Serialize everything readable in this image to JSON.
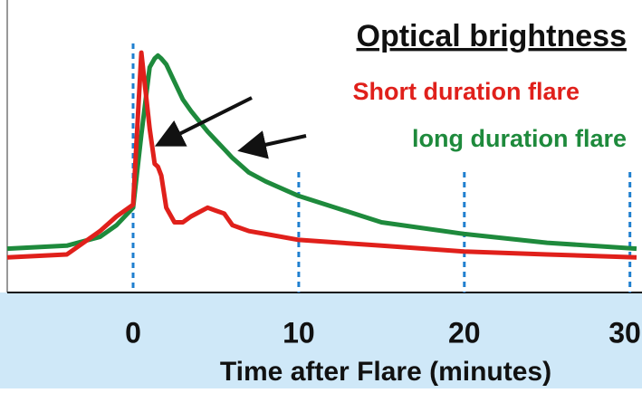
{
  "chart_data": {
    "type": "line",
    "title": "Optical brightness",
    "x_label": "Time after Flare (minutes)",
    "annotations": [
      "Short duration flare",
      "long duration flare"
    ],
    "x": [
      -7.6,
      -4,
      -2,
      -1,
      0,
      0.5,
      1,
      1.3,
      1.5,
      1.7,
      2,
      2.5,
      3,
      3.5,
      4.5,
      5,
      5.5,
      6,
      7,
      8,
      10,
      15,
      20,
      25,
      30.4
    ],
    "series": [
      {
        "name": "Short duration flare",
        "color": "#e0201b",
        "values": [
          12,
          13,
          21,
          26,
          30,
          82,
          56,
          44,
          43,
          40,
          29,
          24,
          24,
          26,
          29,
          28,
          27,
          23,
          21,
          20,
          18,
          16,
          14,
          13,
          12
        ]
      },
      {
        "name": "long duration flare",
        "color": "#1e8a3c",
        "values": [
          15,
          16,
          19,
          23,
          29,
          54,
          77,
          80,
          81,
          80,
          78,
          72,
          66,
          62,
          55,
          52,
          49,
          46,
          41,
          38,
          33,
          24,
          20,
          17,
          15
        ]
      }
    ],
    "xlim": [
      -7.6,
      30.4
    ],
    "ylim": [
      0,
      100
    ],
    "xticks": [
      0,
      10,
      20,
      30
    ],
    "grid": true
  }
}
